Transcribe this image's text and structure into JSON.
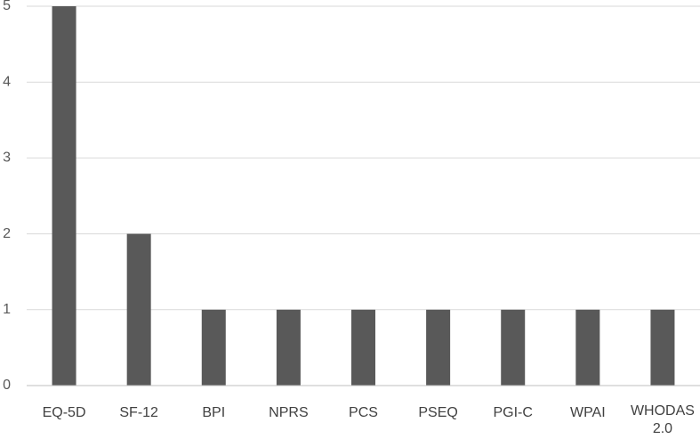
{
  "chart_data": {
    "type": "bar",
    "title": "",
    "xlabel": "",
    "ylabel": "",
    "categories": [
      "EQ-5D",
      "SF-12",
      "BPI",
      "NPRS",
      "PCS",
      "PSEQ",
      "PGI-C",
      "WPAI",
      "WHODAS 2.0"
    ],
    "values": [
      5,
      2,
      1,
      1,
      1,
      1,
      1,
      1,
      1
    ],
    "ylim": [
      0,
      5
    ],
    "yticks": [
      0,
      1,
      2,
      3,
      4,
      5
    ],
    "grid": true,
    "legend": "none",
    "bar_color": "#595959"
  }
}
